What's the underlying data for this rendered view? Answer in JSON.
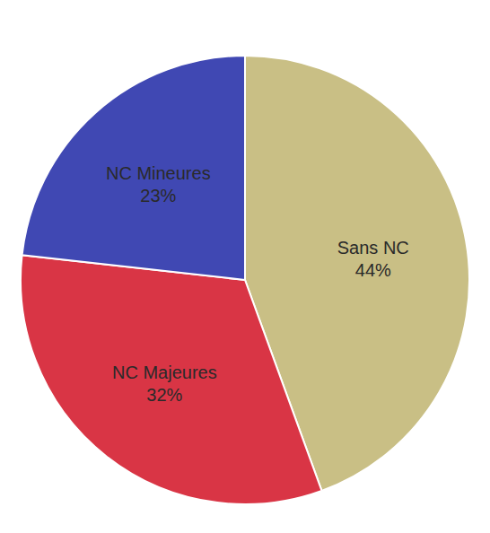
{
  "chart_data": {
    "type": "pie",
    "categories": [
      "Sans NC",
      "NC Majeures",
      "NC Mineures"
    ],
    "values": [
      44,
      32,
      23
    ],
    "value_labels": [
      "44%",
      "32%",
      "23%"
    ],
    "colors": [
      "#c9bf85",
      "#d93545",
      "#4048b3"
    ],
    "data_labels": true
  }
}
